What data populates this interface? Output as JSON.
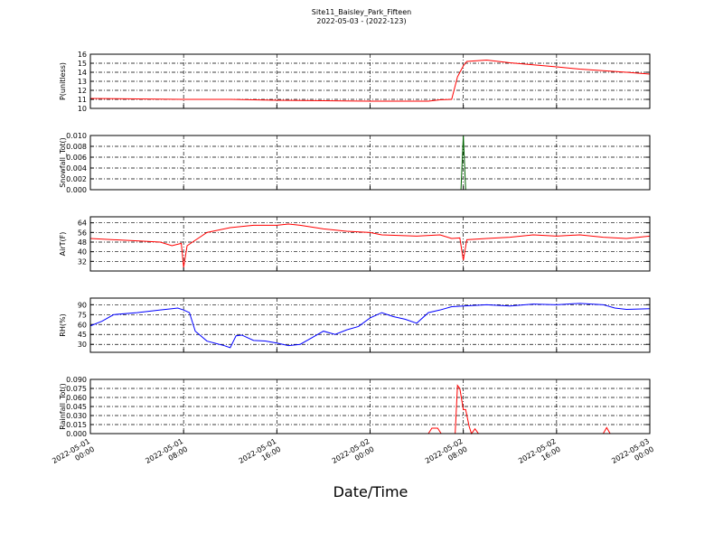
{
  "figure": {
    "title": "Site11_Baisley_Park_Fifteen",
    "subtitle": "2022-05-03 - (2022-123)",
    "xlabel": "Date/Time",
    "xlim": [
      "2022-05-01 00:00",
      "2022-05-03 00:00"
    ],
    "xticks": [
      {
        "value": "2022-05-01 00:00",
        "label": "2022-05-01\n00:00"
      },
      {
        "value": "2022-05-01 08:00",
        "label": "2022-05-01\n08:00"
      },
      {
        "value": "2022-05-01 16:00",
        "label": "2022-05-01\n16:00"
      },
      {
        "value": "2022-05-02 00:00",
        "label": "2022-05-02\n00:00"
      },
      {
        "value": "2022-05-02 08:00",
        "label": "2022-05-02\n08:00"
      },
      {
        "value": "2022-05-02 16:00",
        "label": "2022-05-02\n16:00"
      },
      {
        "value": "2022-05-03 00:00",
        "label": "2022-05-03\n00:00"
      }
    ]
  },
  "chart_data": [
    {
      "type": "line",
      "ylabel": "P(unitless)",
      "color": "#ff0000",
      "grid": true,
      "ylim": [
        10,
        16
      ],
      "yticks": [
        10,
        11,
        12,
        13,
        14,
        15,
        16
      ],
      "x": [
        "2022-05-01 00:00",
        "2022-05-01 04:00",
        "2022-05-01 08:00",
        "2022-05-01 12:00",
        "2022-05-01 16:00",
        "2022-05-01 20:00",
        "2022-05-02 00:00",
        "2022-05-02 05:00",
        "2022-05-02 06:00",
        "2022-05-02 07:00",
        "2022-05-02 07:30",
        "2022-05-02 08:00",
        "2022-05-02 08:18",
        "2022-05-02 10:00",
        "2022-05-02 12:00",
        "2022-05-02 16:00",
        "2022-05-02 18:00",
        "2022-05-02 22:00",
        "2022-05-03 00:00"
      ],
      "values": [
        11.1,
        11.05,
        11.0,
        11.0,
        10.9,
        10.85,
        10.8,
        10.8,
        10.95,
        11.0,
        13.5,
        14.7,
        15.2,
        15.35,
        15.05,
        14.6,
        14.35,
        14.0,
        13.8
      ]
    },
    {
      "type": "line",
      "ylabel": "Snowfall_Tot()",
      "color": "#006400",
      "grid": true,
      "ylim": [
        0,
        0.01
      ],
      "yticks": [
        {
          "value": 0,
          "label": "0.000"
        },
        {
          "value": 0.002,
          "label": "0.002"
        },
        {
          "value": 0.004,
          "label": "0.004"
        },
        {
          "value": 0.006,
          "label": "0.006"
        },
        {
          "value": 0.008,
          "label": "0.008"
        },
        {
          "value": 0.01,
          "label": "0.010"
        }
      ],
      "x": [
        "2022-05-01 00:00",
        "2022-05-02 07:48",
        "2022-05-02 08:00",
        "2022-05-02 08:12",
        "2022-05-03 00:00"
      ],
      "values": [
        0,
        0,
        0.01,
        0,
        0
      ]
    },
    {
      "type": "line",
      "ylabel": "AirT(F)",
      "color": "#ff0000",
      "grid": true,
      "ylim": [
        24,
        69
      ],
      "yticks": [
        32,
        40,
        48,
        56,
        64
      ],
      "x": [
        "2022-05-01 00:00",
        "2022-05-01 04:00",
        "2022-05-01 06:00",
        "2022-05-01 07:00",
        "2022-05-01 07:48",
        "2022-05-01 08:00",
        "2022-05-01 08:18",
        "2022-05-01 10:00",
        "2022-05-01 12:00",
        "2022-05-01 14:00",
        "2022-05-01 16:00",
        "2022-05-01 17:00",
        "2022-05-01 18:00",
        "2022-05-01 20:00",
        "2022-05-01 22:00",
        "2022-05-02 00:00",
        "2022-05-02 01:00",
        "2022-05-02 04:00",
        "2022-05-02 06:00",
        "2022-05-02 07:00",
        "2022-05-02 07:42",
        "2022-05-02 08:00",
        "2022-05-02 08:18",
        "2022-05-02 10:00",
        "2022-05-02 12:00",
        "2022-05-02 14:00",
        "2022-05-02 16:00",
        "2022-05-02 18:00",
        "2022-05-02 20:00",
        "2022-05-02 22:00",
        "2022-05-03 00:00"
      ],
      "values": [
        51,
        49,
        48,
        45,
        47,
        27,
        45,
        56,
        60,
        62,
        62,
        63,
        62,
        59,
        57,
        56,
        54,
        53,
        54,
        51,
        51.5,
        33,
        50,
        51,
        52,
        54,
        53,
        54,
        52,
        51,
        53
      ]
    },
    {
      "type": "line",
      "ylabel": "RH(%)",
      "color": "#0000ff",
      "grid": true,
      "ylim": [
        18,
        100
      ],
      "yticks": [
        30,
        45,
        60,
        75,
        90
      ],
      "x": [
        "2022-05-01 00:00",
        "2022-05-01 01:00",
        "2022-05-01 02:00",
        "2022-05-01 04:00",
        "2022-05-01 05:00",
        "2022-05-01 06:00",
        "2022-05-01 07:00",
        "2022-05-01 07:30",
        "2022-05-01 08:00",
        "2022-05-01 08:30",
        "2022-05-01 09:00",
        "2022-05-01 10:00",
        "2022-05-01 11:30",
        "2022-05-01 12:00",
        "2022-05-01 12:30",
        "2022-05-01 13:00",
        "2022-05-01 14:00",
        "2022-05-01 15:00",
        "2022-05-01 16:00",
        "2022-05-01 17:00",
        "2022-05-01 18:00",
        "2022-05-01 19:00",
        "2022-05-01 20:00",
        "2022-05-01 21:00",
        "2022-05-01 22:00",
        "2022-05-01 23:00",
        "2022-05-02 00:00",
        "2022-05-02 01:00",
        "2022-05-02 02:00",
        "2022-05-02 03:00",
        "2022-05-02 04:00",
        "2022-05-02 05:00",
        "2022-05-02 06:00",
        "2022-05-02 07:00",
        "2022-05-02 08:00",
        "2022-05-02 10:00",
        "2022-05-02 12:00",
        "2022-05-02 14:00",
        "2022-05-02 16:00",
        "2022-05-02 18:00",
        "2022-05-02 20:00",
        "2022-05-02 21:00",
        "2022-05-02 22:00",
        "2022-05-03 00:00"
      ],
      "values": [
        58,
        65,
        75,
        78,
        80,
        82,
        84,
        85,
        82,
        78,
        50,
        35,
        28,
        25,
        43,
        44,
        36,
        35,
        32,
        28,
        30,
        40,
        50,
        45,
        52,
        57,
        70,
        78,
        72,
        68,
        62,
        78,
        82,
        87,
        88,
        90,
        88,
        91,
        90,
        92,
        90,
        85,
        83,
        84
      ]
    },
    {
      "type": "line",
      "ylabel": "Rainfall_Tot()",
      "color": "#ff0000",
      "grid": true,
      "ylim": [
        0,
        0.09
      ],
      "yticks": [
        {
          "value": 0,
          "label": "0.000"
        },
        {
          "value": 0.015,
          "label": "0.015"
        },
        {
          "value": 0.03,
          "label": "0.030"
        },
        {
          "value": 0.045,
          "label": "0.045"
        },
        {
          "value": 0.06,
          "label": "0.060"
        },
        {
          "value": 0.075,
          "label": "0.075"
        },
        {
          "value": 0.09,
          "label": "0.090"
        }
      ],
      "x": [
        "2022-05-01 00:00",
        "2022-05-02 05:00",
        "2022-05-02 05:18",
        "2022-05-02 05:48",
        "2022-05-02 06:06",
        "2022-05-02 07:18",
        "2022-05-02 07:30",
        "2022-05-02 07:42",
        "2022-05-02 08:00",
        "2022-05-02 08:12",
        "2022-05-02 08:30",
        "2022-05-02 08:42",
        "2022-05-02 09:00",
        "2022-05-02 09:18",
        "2022-05-02 20:00",
        "2022-05-02 20:18",
        "2022-05-02 20:36",
        "2022-05-03 00:00"
      ],
      "values": [
        0,
        0,
        0.009,
        0.009,
        0,
        0,
        0.08,
        0.075,
        0.04,
        0.04,
        0.012,
        0,
        0.008,
        0,
        0,
        0.01,
        0,
        0
      ]
    }
  ]
}
